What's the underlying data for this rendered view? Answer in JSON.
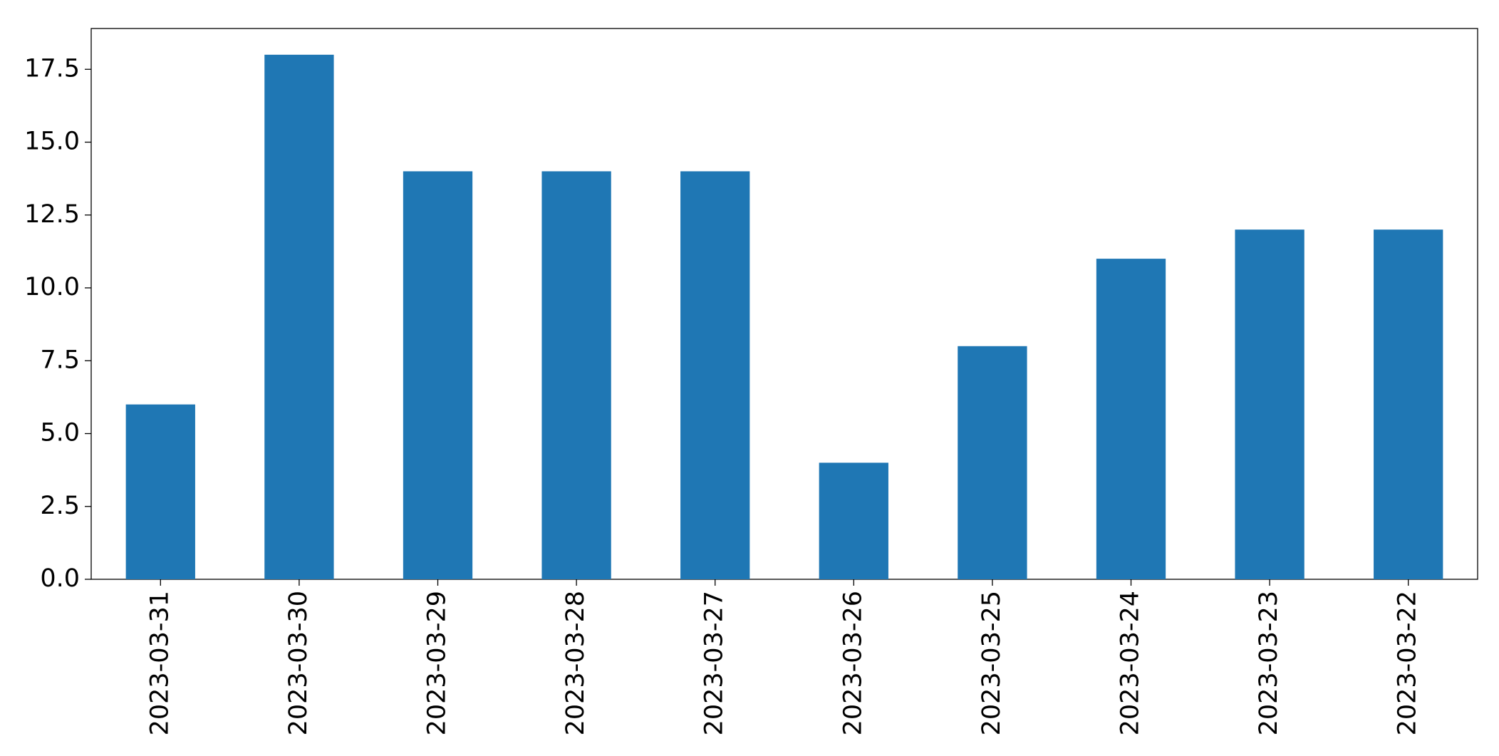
{
  "chart_data": {
    "type": "bar",
    "categories": [
      "2023-03-31",
      "2023-03-30",
      "2023-03-29",
      "2023-03-28",
      "2023-03-27",
      "2023-03-26",
      "2023-03-25",
      "2023-03-24",
      "2023-03-23",
      "2023-03-22"
    ],
    "values": [
      6,
      18,
      14,
      14,
      14,
      4,
      8,
      11,
      12,
      12
    ],
    "color": "#1f77b4",
    "ylim": [
      0,
      18.9
    ],
    "yticks": [
      {
        "value": 0,
        "label": "0.0"
      },
      2.5,
      {
        "value": 5,
        "label": "5.0"
      },
      7.5,
      {
        "value": 10,
        "label": "10.0"
      },
      12.5,
      {
        "value": 15,
        "label": "15.0"
      },
      17.5
    ],
    "grid": false
  }
}
